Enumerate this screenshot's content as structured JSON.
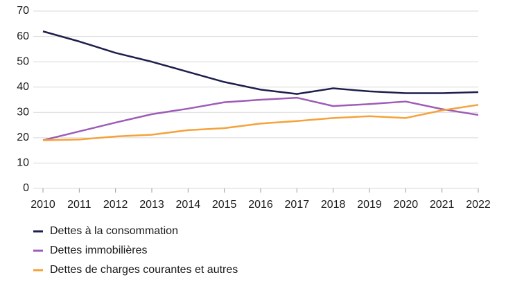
{
  "chart_data": {
    "type": "line",
    "categories": [
      "2010",
      "2011",
      "2012",
      "2013",
      "2014",
      "2015",
      "2016",
      "2017",
      "2018",
      "2019",
      "2020",
      "2021",
      "2022"
    ],
    "series": [
      {
        "name": "Dettes à la consommation",
        "color": "#1c1f4a",
        "values": [
          62,
          58,
          53.5,
          50,
          46,
          42,
          39,
          37.3,
          39.5,
          38.3,
          37.6,
          37.6,
          38
        ]
      },
      {
        "name": "Dettes immobilières",
        "color": "#9d5cb8",
        "values": [
          19,
          22.5,
          26,
          29.3,
          31.5,
          34,
          35,
          35.8,
          32.5,
          33.3,
          34.3,
          31.3,
          29
        ]
      },
      {
        "name": "Dettes de charges courantes et autres",
        "color": "#f5a23a",
        "values": [
          19,
          19.3,
          20.5,
          21.2,
          23,
          23.8,
          25.6,
          26.6,
          27.8,
          28.5,
          27.8,
          30.8,
          33
        ]
      }
    ],
    "ylim": [
      0,
      70
    ],
    "yticks": [
      0,
      10,
      20,
      30,
      40,
      50,
      60,
      70
    ],
    "grid": true
  }
}
